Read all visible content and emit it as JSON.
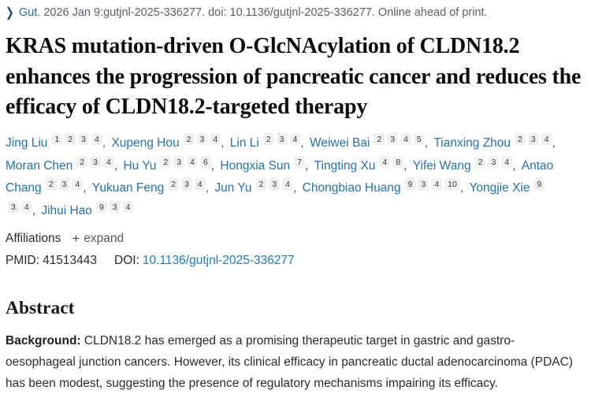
{
  "citation": {
    "chevron_icon": "❯",
    "journal": "Gut.",
    "text": "2026 Jan 9:gutjnl-2025-336277. doi: 10.1136/gutjnl-2025-336277. Online ahead of print."
  },
  "title": "KRAS mutation-driven O-GlcNAcylation of CLDN18.2 enhances the progression of pancreatic cancer and reduces the efficacy of CLDN18.2-targeted therapy",
  "authors": [
    {
      "name": "Jing Liu",
      "affils": [
        "1",
        "2",
        "3",
        "4"
      ]
    },
    {
      "name": "Xupeng Hou",
      "affils": [
        "2",
        "3",
        "4"
      ]
    },
    {
      "name": "Lin Li",
      "affils": [
        "2",
        "3",
        "4"
      ]
    },
    {
      "name": "Weiwei Bai",
      "affils": [
        "2",
        "3",
        "4",
        "5"
      ]
    },
    {
      "name": "Tianxing Zhou",
      "affils": [
        "2",
        "3",
        "4"
      ]
    },
    {
      "name": "Moran Chen",
      "affils": [
        "2",
        "3",
        "4"
      ]
    },
    {
      "name": "Hu Yu",
      "affils": [
        "2",
        "3",
        "4",
        "6"
      ]
    },
    {
      "name": "Hongxia Sun",
      "affils": [
        "7"
      ]
    },
    {
      "name": "Tingting Xu",
      "affils": [
        "4",
        "8"
      ]
    },
    {
      "name": "Yifei Wang",
      "affils": [
        "2",
        "3",
        "4"
      ]
    },
    {
      "name": "Antao Chang",
      "affils": [
        "2",
        "3",
        "4"
      ]
    },
    {
      "name": "Yukuan Feng",
      "affils": [
        "2",
        "3",
        "4"
      ]
    },
    {
      "name": "Jun Yu",
      "affils": [
        "2",
        "3",
        "4"
      ]
    },
    {
      "name": "Chongbiao Huang",
      "affils": [
        "9",
        "3",
        "4",
        "10"
      ]
    },
    {
      "name": "Yongjie Xie",
      "affils": [
        "9",
        "3",
        "4"
      ]
    },
    {
      "name": "Jihui Hao",
      "affils": [
        "9",
        "3",
        "4"
      ]
    }
  ],
  "affiliations": {
    "label": "Affiliations",
    "expand_icon": "+",
    "expand_label": "expand"
  },
  "identifiers": {
    "pmid_label": "PMID:",
    "pmid": "41513443",
    "doi_label": "DOI:",
    "doi": "10.1136/gutjnl-2025-336277"
  },
  "abstract": {
    "heading": "Abstract",
    "background_label": "Background:",
    "background_text": " CLDN18.2 has emerged as a promising therapeutic target in gastric and gastro-oesophageal junction cancers. However, its clinical efficacy in pancreatic ductal adenocarcinoma (PDAC) has been modest, suggesting the presence of regulatory mechanisms impairing its efficacy."
  },
  "colors": {
    "link_blue": "#1a6fb5",
    "doi_link_blue": "#1a7cc4",
    "citation_gray": "#5b616b",
    "text_dark": "#212121",
    "chip_background": "#f1f1f2"
  }
}
